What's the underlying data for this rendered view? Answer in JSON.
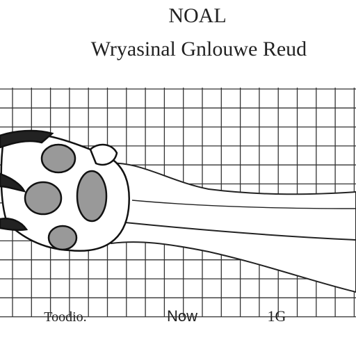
{
  "header": {
    "title": "NOAL",
    "subtitle": "Wryasinal Gnlouwe Reud"
  },
  "footer": {
    "labels": [
      "Toodio.",
      "Now",
      "1G"
    ]
  }
}
